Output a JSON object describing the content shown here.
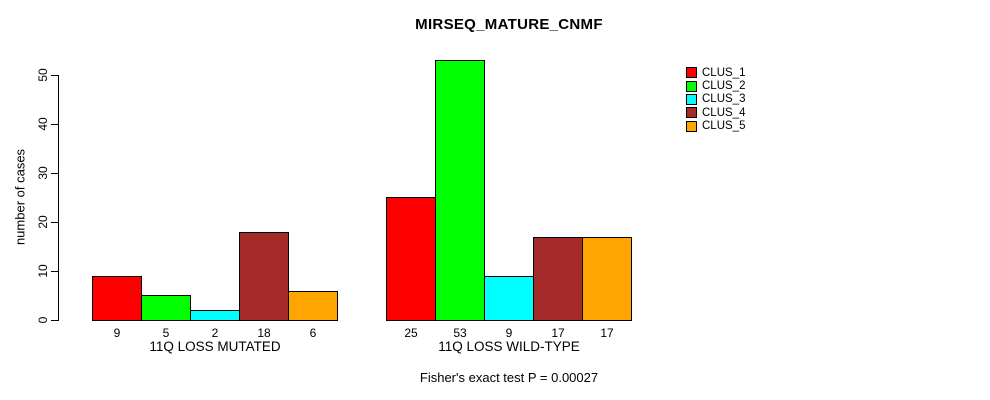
{
  "title": "MIRSEQ_MATURE_CNMF",
  "y_axis": {
    "label": "number of cases"
  },
  "footnote": "Fisher's exact test P = 0.00027",
  "chart_data": {
    "type": "bar",
    "title": "MIRSEQ_MATURE_CNMF",
    "xlabel": "",
    "ylabel": "number of cases",
    "ylim": [
      0,
      50
    ],
    "yticks": [
      0,
      10,
      20,
      30,
      40,
      50
    ],
    "categories": [
      "11Q LOSS MUTATED",
      "11Q LOSS WILD-TYPE"
    ],
    "series": [
      {
        "name": "CLUS_1",
        "color": "#FF0000",
        "values": [
          9,
          25
        ]
      },
      {
        "name": "CLUS_2",
        "color": "#00FF00",
        "values": [
          5,
          53
        ]
      },
      {
        "name": "CLUS_3",
        "color": "#00FFFF",
        "values": [
          2,
          9
        ]
      },
      {
        "name": "CLUS_4",
        "color": "#A52A2A",
        "values": [
          18,
          17
        ]
      },
      {
        "name": "CLUS_5",
        "color": "#FFA500",
        "values": [
          6,
          17
        ]
      }
    ],
    "bar_value_labels": [
      [
        "9",
        "5",
        "2",
        "18",
        "6"
      ],
      [
        "25",
        "53",
        "9",
        "17",
        "17"
      ]
    ],
    "legend_position": "top-right",
    "grid": false,
    "annotation": "Fisher's exact test P = 0.00027"
  }
}
